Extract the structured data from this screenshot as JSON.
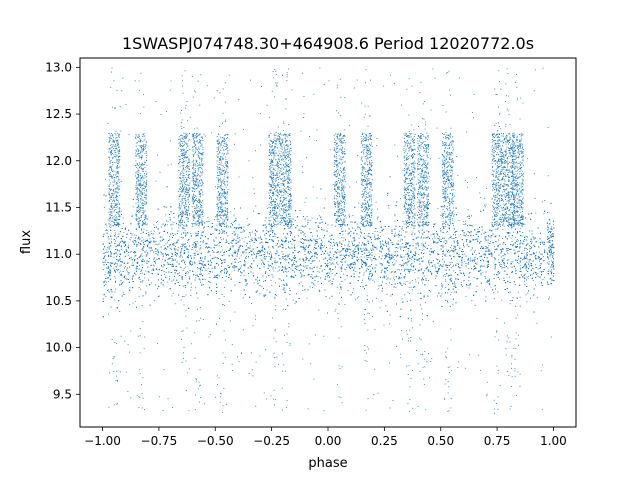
{
  "chart_data": {
    "type": "scatter",
    "title": "1SWASPJ074748.30+464908.6 Period 12020772.0s",
    "xlabel": "phase",
    "ylabel": "flux",
    "xlim": [
      -1.1,
      1.1
    ],
    "ylim": [
      9.15,
      13.1
    ],
    "x_ticks": [
      -1.0,
      -0.75,
      -0.5,
      -0.25,
      0.0,
      0.25,
      0.5,
      0.75,
      1.0
    ],
    "x_tick_labels": [
      "−1.00",
      "−0.75",
      "−0.50",
      "−0.25",
      "0.00",
      "0.25",
      "0.50",
      "0.75",
      "1.00"
    ],
    "y_ticks": [
      9.5,
      10.0,
      10.5,
      11.0,
      11.5,
      12.0,
      12.5,
      13.0
    ],
    "y_tick_labels": [
      "9.5",
      "10.0",
      "10.5",
      "11.0",
      "11.5",
      "12.0",
      "12.5",
      "13.0"
    ],
    "grid": false,
    "marker_color": "#1f77b4",
    "series": [
      {
        "points": "dense point cloud mirrored at phase ±1 (same light curve plotted twice)",
        "baseline_flux": 11.0,
        "typical_scatter": [
          10.6,
          11.4
        ],
        "outlier_range": [
          9.3,
          13.0
        ],
        "bright_bands_phase": [
          -0.95,
          -0.83,
          -0.64,
          -0.58,
          -0.47,
          -0.24,
          -0.19,
          0.05,
          0.17,
          0.36,
          0.42,
          0.53,
          0.75,
          0.8,
          0.84
        ]
      }
    ]
  }
}
